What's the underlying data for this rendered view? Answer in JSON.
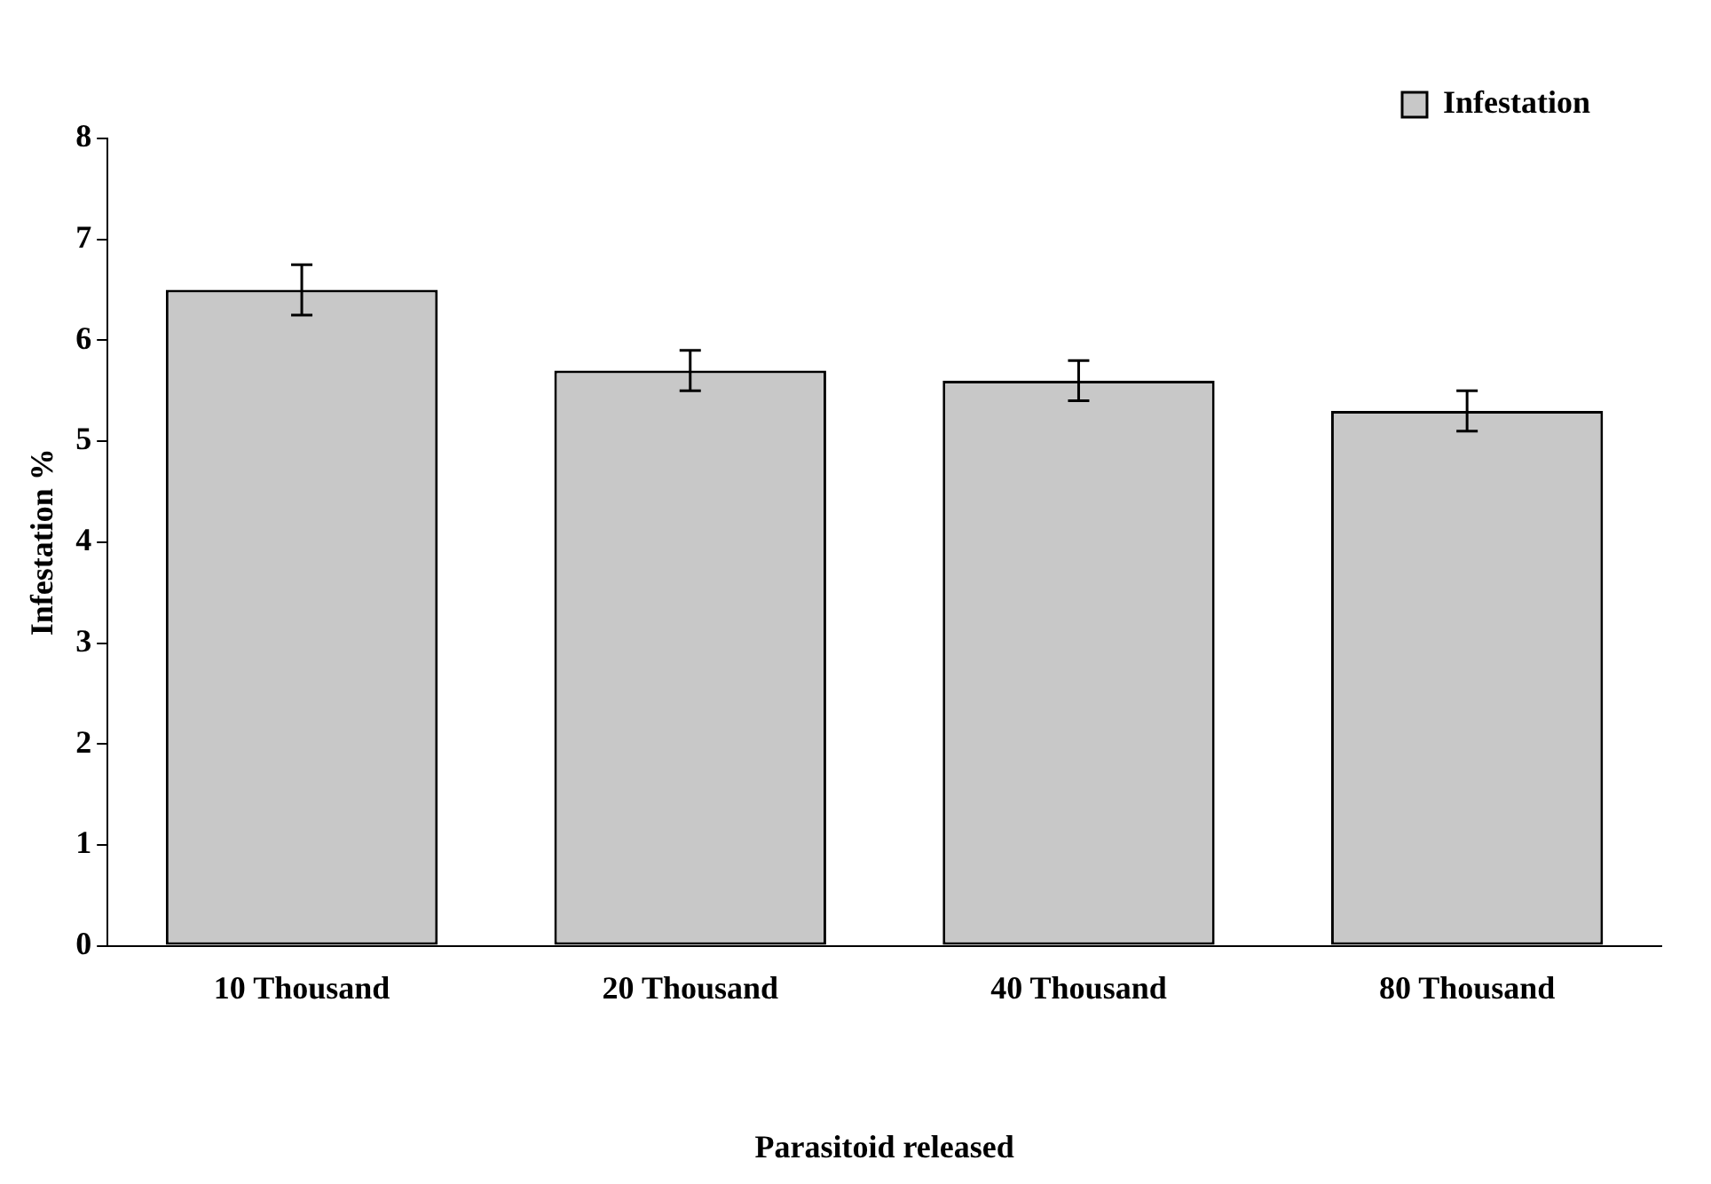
{
  "chart_data": {
    "type": "bar",
    "xlabel": "Parasitoid released",
    "ylabel": "Infestation %",
    "categories": [
      "10 Thousand",
      "20 Thousand",
      "40 Thousand",
      "80 Thousand"
    ],
    "series": [
      {
        "name": "Infestation",
        "color": "#c8c8c8",
        "values": [
          6.5,
          5.7,
          5.6,
          5.3
        ],
        "errors": [
          0.25,
          0.2,
          0.2,
          0.2
        ]
      }
    ],
    "ylim": [
      0,
      8
    ],
    "yticks": [
      0,
      1,
      2,
      3,
      4,
      5,
      6,
      7,
      8
    ],
    "grid": false,
    "legend": "top right"
  }
}
